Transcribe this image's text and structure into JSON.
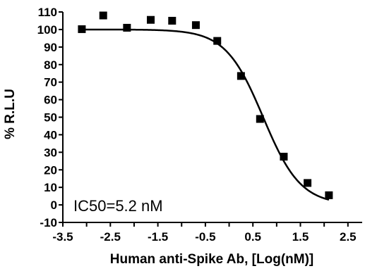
{
  "chart_data": {
    "type": "scatter",
    "title": "",
    "xlabel": "Human anti-Spike Ab, [Log(nM)]",
    "ylabel": "% R.L.U",
    "xlim": [
      -3.5,
      2.8
    ],
    "ylim": [
      -10,
      110
    ],
    "x_ticks": [
      "-3.5",
      "-2.5",
      "-1.5",
      "-0.5",
      "0.5",
      "1.5",
      "2.5"
    ],
    "y_ticks": [
      "-10",
      "0",
      "10",
      "20",
      "30",
      "40",
      "50",
      "60",
      "70",
      "80",
      "90",
      "100",
      "110"
    ],
    "annotation": "IC50=5.2 nM",
    "marker_color": "#000000",
    "series": [
      {
        "marker": "square",
        "x": [
          -3.1,
          -2.65,
          -2.15,
          -1.65,
          -1.2,
          -0.7,
          -0.25,
          0.25,
          0.65,
          1.15,
          1.65,
          2.1
        ],
        "y": [
          100.2,
          108,
          101,
          105.5,
          105,
          102.5,
          93.5,
          73.5,
          49,
          27.5,
          12.5,
          5.5
        ]
      }
    ],
    "fit_curve": {
      "model": "sigmoidal dose-response",
      "top": 100,
      "bottom": 0,
      "log_ic50": 0.716,
      "hill_slope": -1.1
    }
  }
}
